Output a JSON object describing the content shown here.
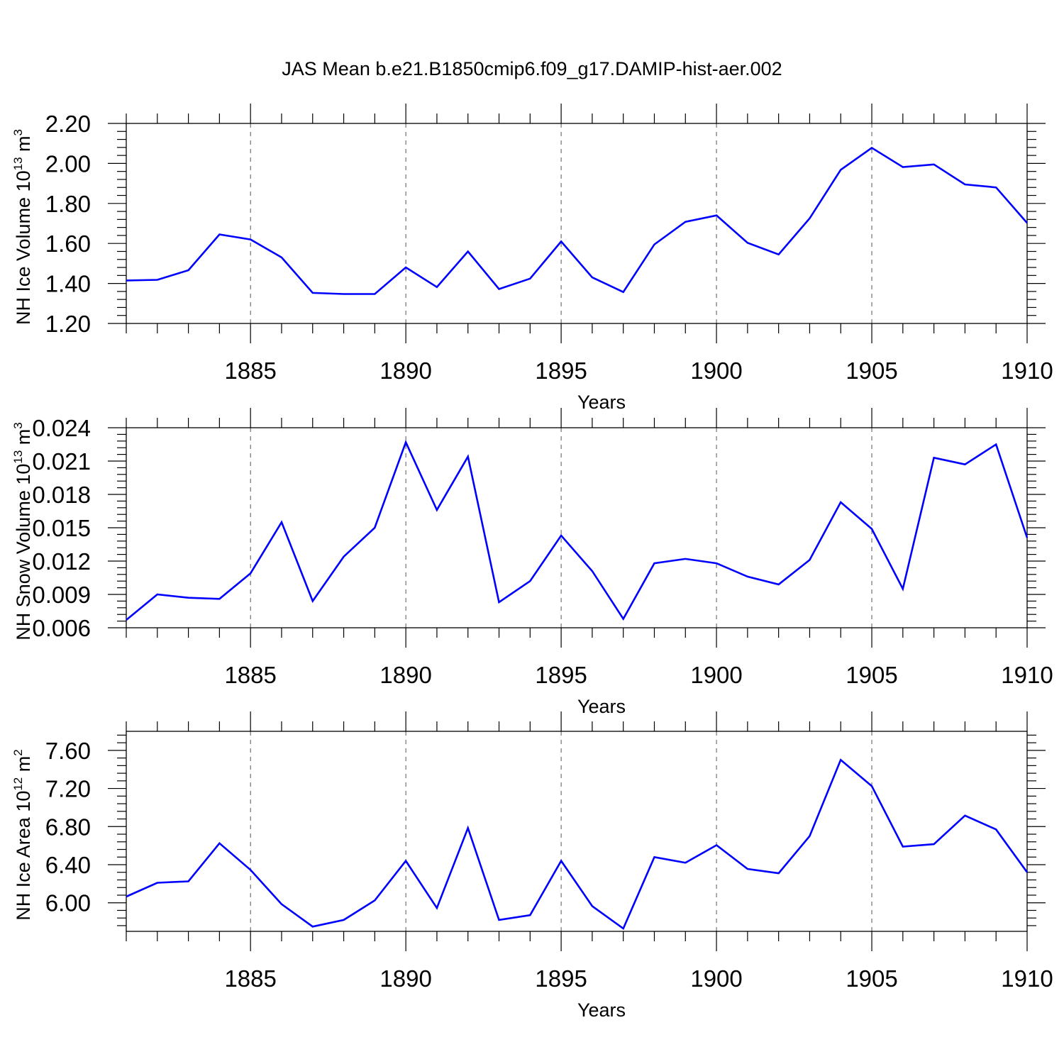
{
  "title": "JAS Mean b.e21.B1850cmip6.f09_g17.DAMIP-hist-aer.002",
  "colors": {
    "series": "#0000ff",
    "axis": "#000000",
    "grid": "#555555"
  },
  "chart_data": [
    {
      "type": "line",
      "ylabel": "NH Ice Volume 10",
      "ylabel_exponent": "13",
      "ylabel_unit": " m",
      "ylabel_unit_exponent": "3",
      "xlabel": "Years",
      "xlim": [
        1881,
        1910
      ],
      "ylim": [
        1.2,
        2.2
      ],
      "yticks": [
        "1.20",
        "1.40",
        "1.60",
        "1.80",
        "2.00",
        "2.20"
      ],
      "xticks": [
        "1885",
        "1890",
        "1895",
        "1900",
        "1905",
        "1910"
      ],
      "grid": "vertical dashed at major x ticks",
      "x": [
        1881,
        1882,
        1883,
        1884,
        1885,
        1886,
        1887,
        1888,
        1889,
        1890,
        1891,
        1892,
        1893,
        1894,
        1895,
        1896,
        1897,
        1898,
        1899,
        1900,
        1901,
        1902,
        1903,
        1904,
        1905,
        1906,
        1907,
        1908,
        1909,
        1910
      ],
      "values": [
        1.415,
        1.418,
        1.466,
        1.645,
        1.62,
        1.53,
        1.353,
        1.347,
        1.347,
        1.48,
        1.382,
        1.56,
        1.372,
        1.424,
        1.61,
        1.43,
        1.357,
        1.595,
        1.708,
        1.74,
        1.603,
        1.545,
        1.725,
        1.968,
        2.078,
        1.982,
        1.995,
        1.895,
        1.88,
        1.702
      ]
    },
    {
      "type": "line",
      "ylabel": "NH Snow Volume 10",
      "ylabel_exponent": "13",
      "ylabel_unit": " m",
      "ylabel_unit_exponent": "3",
      "xlabel": "Years",
      "xlim": [
        1881,
        1910
      ],
      "ylim": [
        0.006,
        0.024
      ],
      "yticks": [
        "0.006",
        "0.009",
        "0.012",
        "0.015",
        "0.018",
        "0.021",
        "0.024"
      ],
      "xticks": [
        "1885",
        "1890",
        "1895",
        "1900",
        "1905",
        "1910"
      ],
      "grid": "vertical dashed at major x ticks",
      "x": [
        1881,
        1882,
        1883,
        1884,
        1885,
        1886,
        1887,
        1888,
        1889,
        1890,
        1891,
        1892,
        1893,
        1894,
        1895,
        1896,
        1897,
        1898,
        1899,
        1900,
        1901,
        1902,
        1903,
        1904,
        1905,
        1906,
        1907,
        1908,
        1909,
        1910
      ],
      "values": [
        0.0067,
        0.009,
        0.0087,
        0.0086,
        0.0109,
        0.0155,
        0.0084,
        0.0124,
        0.015,
        0.0227,
        0.0166,
        0.0214,
        0.0083,
        0.0102,
        0.0143,
        0.0111,
        0.0068,
        0.0118,
        0.0122,
        0.0118,
        0.0106,
        0.0099,
        0.0121,
        0.0173,
        0.0149,
        0.0095,
        0.0213,
        0.0207,
        0.0225,
        0.0141
      ]
    },
    {
      "type": "line",
      "ylabel": "NH Ice Area 10",
      "ylabel_exponent": "12",
      "ylabel_unit": " m",
      "ylabel_unit_exponent": "2",
      "xlabel": "Years",
      "xlim": [
        1881,
        1910
      ],
      "ylim": [
        5.7,
        7.8
      ],
      "yticks": [
        "6.00",
        "6.40",
        "6.80",
        "7.20",
        "7.60"
      ],
      "xticks": [
        "1885",
        "1890",
        "1895",
        "1900",
        "1905",
        "1910"
      ],
      "grid": "vertical dashed at major x ticks",
      "x": [
        1881,
        1882,
        1883,
        1884,
        1885,
        1886,
        1887,
        1888,
        1889,
        1890,
        1891,
        1892,
        1893,
        1894,
        1895,
        1896,
        1897,
        1898,
        1899,
        1900,
        1901,
        1902,
        1903,
        1904,
        1905,
        1906,
        1907,
        1908,
        1909,
        1910
      ],
      "values": [
        6.065,
        6.21,
        6.225,
        6.625,
        6.345,
        5.985,
        5.75,
        5.82,
        6.025,
        6.44,
        5.945,
        6.785,
        5.82,
        5.87,
        6.44,
        5.965,
        5.73,
        6.48,
        6.42,
        6.605,
        6.355,
        6.31,
        6.7,
        7.5,
        7.225,
        6.59,
        6.615,
        6.915,
        6.77,
        6.32
      ]
    }
  ]
}
